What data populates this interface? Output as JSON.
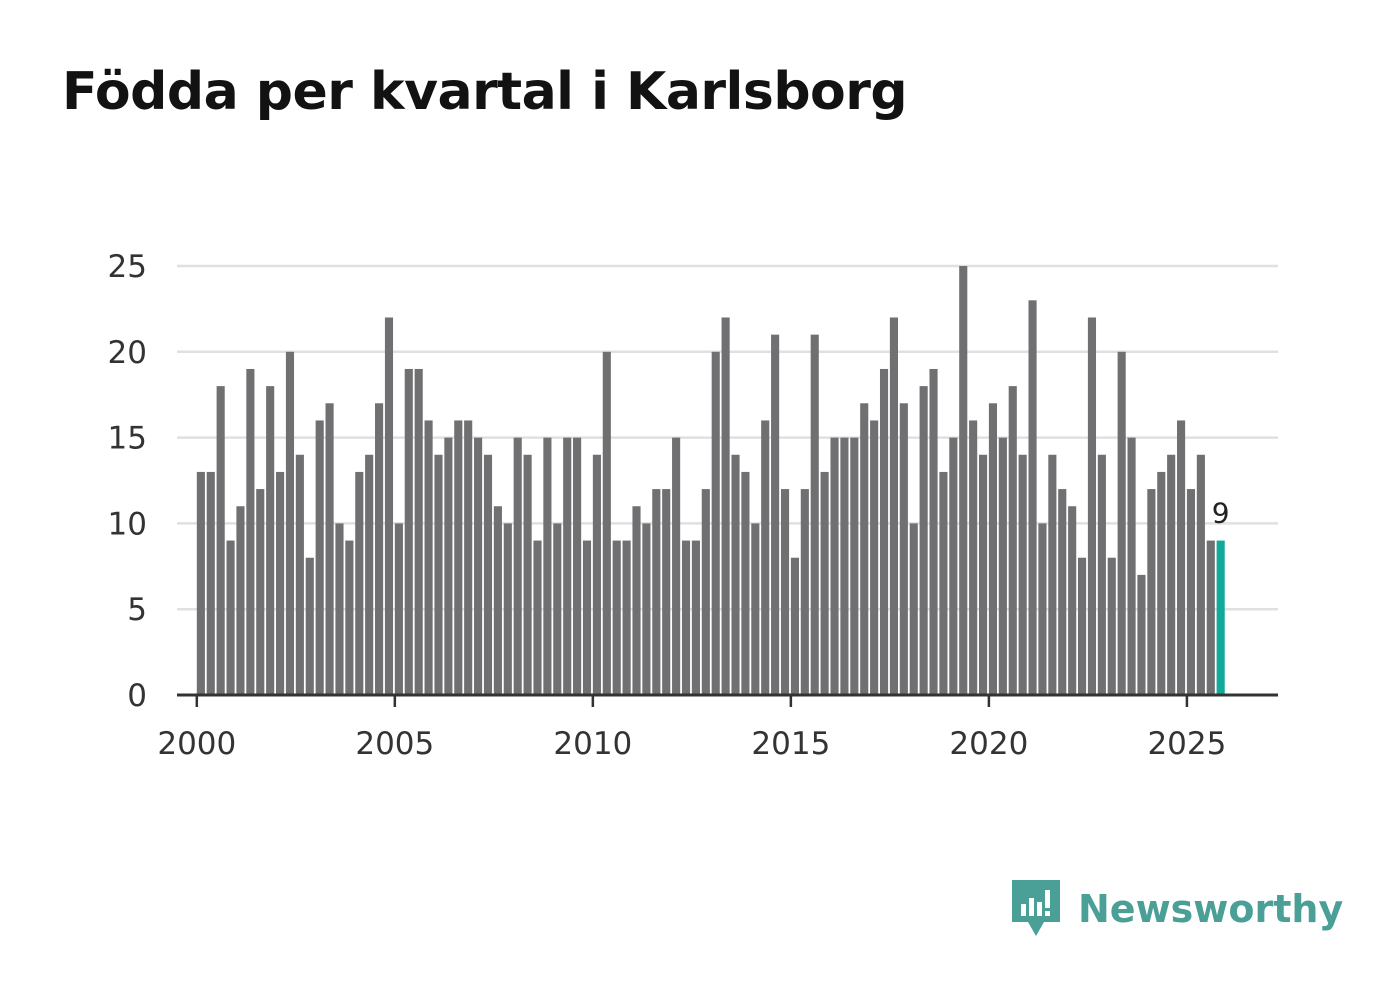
{
  "chart_data": {
    "type": "bar",
    "title": "Födda per kvartal i Karlsborg",
    "xlabel": "",
    "ylabel": "",
    "ylim": [
      0,
      25
    ],
    "yticks": [
      0,
      5,
      10,
      15,
      20,
      25
    ],
    "xticks": [
      2000,
      2005,
      2010,
      2015,
      2020,
      2025
    ],
    "xlim": [
      1999.5,
      2027.3
    ],
    "grid": true,
    "start_year": 2000,
    "start_quarter": 1,
    "values": [
      13,
      13,
      18,
      9,
      11,
      19,
      12,
      18,
      13,
      20,
      14,
      8,
      16,
      17,
      10,
      9,
      13,
      14,
      17,
      22,
      10,
      19,
      19,
      16,
      14,
      15,
      16,
      16,
      15,
      14,
      11,
      10,
      15,
      14,
      9,
      15,
      10,
      15,
      15,
      9,
      14,
      20,
      9,
      9,
      11,
      10,
      12,
      12,
      15,
      9,
      9,
      12,
      20,
      22,
      14,
      13,
      10,
      16,
      21,
      12,
      8,
      12,
      21,
      13,
      15,
      15,
      15,
      17,
      16,
      19,
      22,
      17,
      10,
      18,
      19,
      13,
      15,
      25,
      16,
      14,
      17,
      15,
      18,
      14,
      23,
      10,
      14,
      12,
      11,
      8,
      22,
      14,
      8,
      20,
      15,
      7,
      12,
      13,
      14,
      16,
      12,
      14,
      9,
      9
    ],
    "highlight_last": true,
    "last_value_label": "9",
    "colors": {
      "bar": "#707073",
      "highlight": "#12a89a",
      "grid": "#e0e0e0",
      "axis": "#333333"
    }
  },
  "brand": {
    "name": "Newsworthy",
    "color": "#4a9f96",
    "logo_icon": "newsworthy-chart-bubble-icon"
  }
}
